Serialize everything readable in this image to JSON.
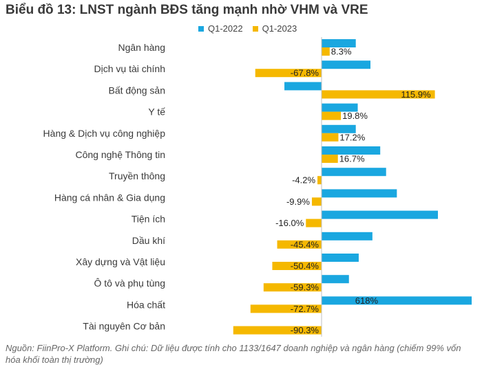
{
  "title": "Biểu đồ 13: LNST ngành BĐS tăng mạnh nhờ VHM và VRE",
  "legend": [
    {
      "name": "Q1-2022",
      "color": "#1aa7e0"
    },
    {
      "name": "Q1-2023",
      "color": "#f5b800"
    }
  ],
  "source": "Nguồn: FiinPro-X Platform. Ghi chú: Dữ liệu được tính cho 1133/1647 doanh nghiệp và ngân hàng (chiếm 99% vốn hóa khối toàn thị trường)",
  "chart_data": {
    "type": "bar",
    "orientation": "horizontal",
    "categories": [
      "Ngân hàng",
      "Dịch vụ tài chính",
      "Bất động sản",
      "Y tế",
      "Hàng & Dịch vụ công nghiệp",
      "Công nghệ Thông tin",
      "Truyền thông",
      "Hàng cá nhân & Gia dụng",
      "Tiện ích",
      "Dầu khí",
      "Xây dựng và Vật liệu",
      "Ô tô và phụ tùng",
      "Hóa chất",
      "Tài nguyên Cơ bản"
    ],
    "series": [
      {
        "name": "Q1-2022",
        "color": "#1aa7e0",
        "values": [
          35,
          50,
          -38,
          37,
          35,
          60,
          66,
          77,
          119,
          52,
          38,
          28,
          618,
          null
        ],
        "labels": [
          "",
          "",
          "",
          "",
          "",
          "",
          "",
          "",
          "",
          "",
          "",
          "",
          "618%",
          ""
        ]
      },
      {
        "name": "Q1-2023",
        "color": "#f5b800",
        "values": [
          8.3,
          -67.8,
          115.9,
          19.8,
          17.2,
          16.7,
          -4.2,
          -9.9,
          -16.0,
          -45.4,
          -50.4,
          -59.3,
          -72.7,
          -90.3
        ],
        "labels": [
          "8.3%",
          "-67.8%",
          "115.9%",
          "19.8%",
          "17.2%",
          "16.7%",
          "-4.2%",
          "-9.9%",
          "-16.0%",
          "-45.4%",
          "-50.4%",
          "-59.3%",
          "-72.7%",
          "-90.3%"
        ]
      }
    ],
    "xlabel": "",
    "ylabel": "",
    "grid": false,
    "legend_position": "top"
  }
}
